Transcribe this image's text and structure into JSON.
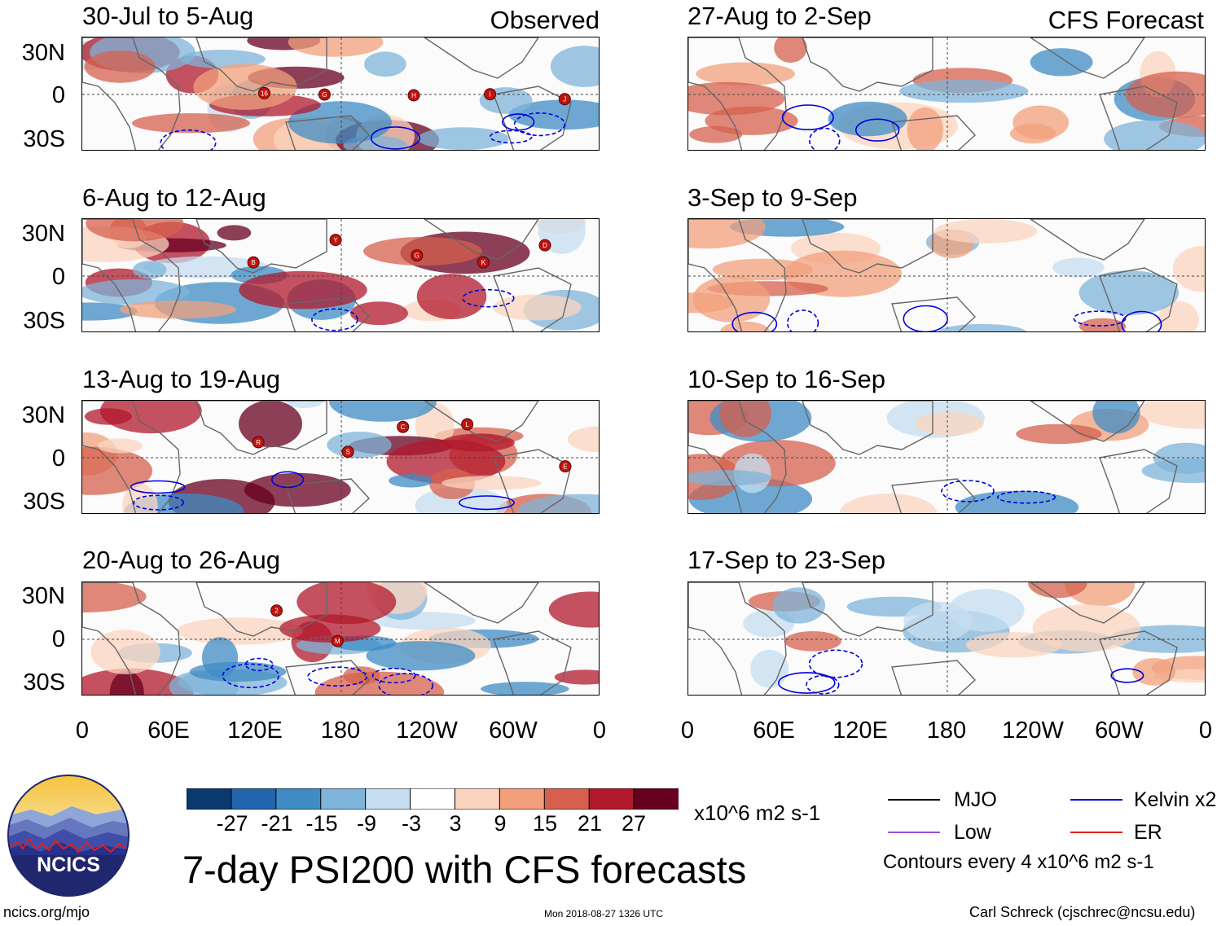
{
  "header": {
    "left_label": "Observed",
    "right_label": "CFS Forecast"
  },
  "panels": [
    {
      "id": "obs-1",
      "title": "30-Jul to 5-Aug",
      "storms": [
        "16",
        "G",
        "H",
        "I",
        "J"
      ]
    },
    {
      "id": "obs-2",
      "title": "6-Aug to 12-Aug",
      "storms": [
        "B",
        "Y",
        "G",
        "K",
        "D"
      ]
    },
    {
      "id": "obs-3",
      "title": "13-Aug to 19-Aug",
      "storms": [
        "R",
        "S",
        "C",
        "L",
        "E"
      ]
    },
    {
      "id": "obs-4",
      "title": "20-Aug to 26-Aug",
      "storms": [
        "2",
        "M"
      ]
    },
    {
      "id": "fc-1",
      "title": "27-Aug to 2-Sep",
      "storms": []
    },
    {
      "id": "fc-2",
      "title": "3-Sep to 9-Sep",
      "storms": []
    },
    {
      "id": "fc-3",
      "title": "10-Sep to 16-Sep",
      "storms": []
    },
    {
      "id": "fc-4",
      "title": "17-Sep to 23-Sep",
      "storms": []
    }
  ],
  "axes": {
    "y_ticks": [
      "30N",
      "0",
      "30S"
    ],
    "x_ticks": [
      "0",
      "60E",
      "120E",
      "180",
      "120W",
      "60W",
      "0"
    ]
  },
  "colorbar": {
    "labels": [
      "-27",
      "-21",
      "-15",
      "-9",
      "-3",
      "3",
      "9",
      "15",
      "21",
      "27"
    ],
    "colors": [
      "#0b3a6e",
      "#2166ac",
      "#3f8cc4",
      "#7fb4da",
      "#c6def0",
      "#ffffff",
      "#fbd4bf",
      "#f2a07c",
      "#d6604d",
      "#b2182b",
      "#67001f"
    ],
    "units": "x10^6 m2 s-1"
  },
  "legend": {
    "items": [
      {
        "label": "MJO",
        "color": "#000000"
      },
      {
        "label": "Low",
        "color": "#9b4fe0"
      },
      {
        "label": "Kelvin x2",
        "color": "#0000dd"
      },
      {
        "label": "ER",
        "color": "#e0201a"
      }
    ],
    "contour_note": "Contours every 4 x10^6 m2 s-1"
  },
  "title": "7-day PSI200 with CFS forecasts",
  "logo": {
    "text": "NCICS"
  },
  "footer": {
    "url": "ncics.org/mjo",
    "timestamp": "Mon 2018-08-27 1326 UTC",
    "author": "Carl Schreck (cjschrec@ncsu.edu)"
  }
}
